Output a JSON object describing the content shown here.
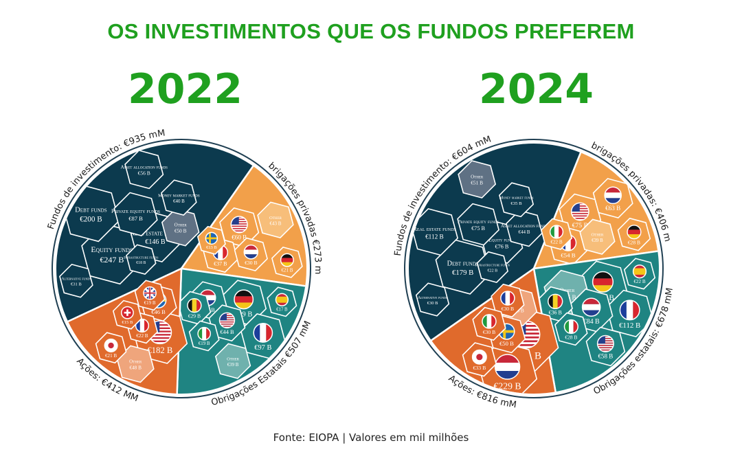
{
  "title": "OS INVESTIMENTOS QUE OS FUNDOS PREFEREM",
  "source": "Fonte: EIOPA | Valores em mil milhões",
  "colors": {
    "investment_funds": "#0c3a4e",
    "corporate_bonds": "#f2a04a",
    "government_bonds": "#1f8482",
    "equities": "#e06a2c",
    "other_fund": "#5f7184",
    "other_corp": "#f7be7a",
    "other_gov": "#6fb1ad",
    "other_eq": "#efa57c",
    "title_green": "#1fa01f"
  },
  "chart_data": [
    {
      "type": "voronoi-treemap",
      "year": "2022",
      "groups": [
        {
          "id": "fund",
          "label": "Fundos de investimento: €935 mM",
          "value": 935,
          "color": "#0c3a4e"
        },
        {
          "id": "corp",
          "label": "Obrigações privadas €273 mM",
          "value": 273,
          "color": "#f2a04a"
        },
        {
          "id": "gov",
          "label": "Obrigações Estatais €507 mM",
          "value": 507,
          "color": "#1f8482"
        },
        {
          "id": "eq",
          "label": "Ações: €412 MM",
          "value": 412,
          "color": "#e06a2c"
        }
      ],
      "cells": [
        {
          "group": "fund",
          "name": "Equity funds",
          "value_label": "€247 B",
          "value": 247
        },
        {
          "group": "fund",
          "name": "Debt funds",
          "value_label": "€200 B",
          "value": 200
        },
        {
          "group": "fund",
          "name": "Real estate funds",
          "value_label": "€146 B",
          "value": 146
        },
        {
          "group": "fund",
          "name": "Private equity funds",
          "value_label": "€87 B",
          "value": 87
        },
        {
          "group": "fund",
          "name": "Other",
          "value_label": "€50 B",
          "value": 50
        },
        {
          "group": "fund",
          "name": "Asset allocation funds",
          "value_label": "€56 B",
          "value": 56
        },
        {
          "group": "fund",
          "name": "Infrastructure funds",
          "value_label": "€18 B",
          "value": 18
        },
        {
          "group": "fund",
          "name": "Alternative funds",
          "value_label": "€31 B",
          "value": 31
        },
        {
          "group": "fund",
          "name": "Money market funds",
          "value_label": "€40 B",
          "value": 40
        },
        {
          "group": "corp",
          "name": "USA",
          "value_label": "€60 B",
          "value": 60,
          "flag": "us"
        },
        {
          "group": "corp",
          "name": "Other",
          "value_label": "€43 B",
          "value": 43
        },
        {
          "group": "corp",
          "name": "France",
          "value_label": "€37 B",
          "value": 37,
          "flag": "fr"
        },
        {
          "group": "corp",
          "name": "Germany",
          "value_label": "€21 B",
          "value": 21,
          "flag": "de"
        },
        {
          "group": "corp",
          "name": "Netherlands",
          "value_label": "€30 B",
          "value": 30,
          "flag": "nl"
        },
        {
          "group": "corp",
          "name": "Sweden",
          "value_label": "€13 B",
          "value": 13,
          "flag": "se"
        },
        {
          "group": "gov",
          "name": "Germany",
          "value_label": "€99 B",
          "value": 99,
          "flag": "de"
        },
        {
          "group": "gov",
          "name": "France",
          "value_label": "€97 B",
          "value": 97,
          "flag": "fr"
        },
        {
          "group": "gov",
          "name": "Netherlands",
          "value_label": "€52 B",
          "value": 52,
          "flag": "nl"
        },
        {
          "group": "gov",
          "name": "Other",
          "value_label": "€39 B",
          "value": 39
        },
        {
          "group": "gov",
          "name": "Belgium",
          "value_label": "€29 B",
          "value": 29,
          "flag": "be"
        },
        {
          "group": "gov",
          "name": "USA",
          "value_label": "€44 B",
          "value": 44,
          "flag": "us"
        },
        {
          "group": "gov",
          "name": "Spain",
          "value_label": "€17 B",
          "value": 17,
          "flag": "es"
        },
        {
          "group": "gov",
          "name": "Italy",
          "value_label": "€19 B",
          "value": 19,
          "flag": "it"
        },
        {
          "group": "eq",
          "name": "USA",
          "value_label": "€182 B",
          "value": 182,
          "flag": "us"
        },
        {
          "group": "eq",
          "name": "Sweden",
          "value_label": "€46 B",
          "value": 46,
          "flag": "se"
        },
        {
          "group": "eq",
          "name": "Other",
          "value_label": "€48 B",
          "value": 48
        },
        {
          "group": "eq",
          "name": "UK",
          "value_label": "€19 B",
          "value": 19,
          "flag": "gb"
        },
        {
          "group": "eq",
          "name": "France",
          "value_label": "€22 B",
          "value": 22,
          "flag": "fr"
        },
        {
          "group": "eq",
          "name": "Japan",
          "value_label": "€21 B",
          "value": 21,
          "flag": "jp"
        },
        {
          "group": "eq",
          "name": "Switzerland",
          "value_label": "€15 B",
          "value": 15,
          "flag": "ch"
        }
      ]
    },
    {
      "type": "voronoi-treemap",
      "year": "2024",
      "groups": [
        {
          "id": "fund",
          "label": "Fundos de investimento: €604 mM",
          "value": 604,
          "color": "#0c3a4e"
        },
        {
          "id": "corp",
          "label": "Obrigações privadas: €406 mM",
          "value": 406,
          "color": "#f2a04a"
        },
        {
          "id": "gov",
          "label": "Obrigações estatais: €678 mM",
          "value": 678,
          "color": "#1f8482"
        },
        {
          "id": "eq",
          "label": "Ações: €816 mM",
          "value": 816,
          "color": "#e06a2c"
        }
      ],
      "cells": [
        {
          "group": "fund",
          "name": "Debt funds",
          "value_label": "€179 B",
          "value": 179
        },
        {
          "group": "fund",
          "name": "Real estate funds",
          "value_label": "€112 B",
          "value": 112
        },
        {
          "group": "fund",
          "name": "Equity funds",
          "value_label": "€76 B",
          "value": 76
        },
        {
          "group": "fund",
          "name": "Private equity funds",
          "value_label": "€75 B",
          "value": 75
        },
        {
          "group": "fund",
          "name": "Other",
          "value_label": "€51 B",
          "value": 51
        },
        {
          "group": "fund",
          "name": "Asset allocation funds",
          "value_label": "€44 B",
          "value": 44
        },
        {
          "group": "fund",
          "name": "Alternative funds",
          "value_label": "€30 B",
          "value": 30
        },
        {
          "group": "fund",
          "name": "Money market funds",
          "value_label": "€35 B",
          "value": 35
        },
        {
          "group": "fund",
          "name": "Infrastructure funds",
          "value_label": "€22 B",
          "value": 22
        },
        {
          "group": "corp",
          "name": "USA",
          "value_label": "€75 B",
          "value": 75,
          "flag": "us"
        },
        {
          "group": "corp",
          "name": "Netherlands",
          "value_label": "€63 B",
          "value": 63,
          "flag": "nl"
        },
        {
          "group": "corp",
          "name": "France",
          "value_label": "€54 B",
          "value": 54,
          "flag": "fr"
        },
        {
          "group": "corp",
          "name": "Other",
          "value_label": "€39 B",
          "value": 39
        },
        {
          "group": "corp",
          "name": "Germany",
          "value_label": "€28 B",
          "value": 28,
          "flag": "de"
        },
        {
          "group": "corp",
          "name": "Italy",
          "value_label": "€22 B",
          "value": 22,
          "flag": "it"
        },
        {
          "group": "gov",
          "name": "Germany",
          "value_label": "€128 B",
          "value": 128,
          "flag": "de"
        },
        {
          "group": "gov",
          "name": "France",
          "value_label": "€112 B",
          "value": 112,
          "flag": "fr"
        },
        {
          "group": "gov",
          "name": "Other",
          "value_label": "€105 B",
          "value": 105
        },
        {
          "group": "gov",
          "name": "Netherlands",
          "value_label": "€84 B",
          "value": 84,
          "flag": "nl"
        },
        {
          "group": "gov",
          "name": "USA",
          "value_label": "€58 B",
          "value": 58,
          "flag": "us"
        },
        {
          "group": "gov",
          "name": "Belgium",
          "value_label": "€36 B",
          "value": 36,
          "flag": "be"
        },
        {
          "group": "gov",
          "name": "Italy",
          "value_label": "€28 B",
          "value": 28,
          "flag": "it"
        },
        {
          "group": "gov",
          "name": "Spain",
          "value_label": "€22 B",
          "value": 22,
          "flag": "es"
        },
        {
          "group": "eq",
          "name": "USA",
          "value_label": "€291 B",
          "value": 291,
          "flag": "us"
        },
        {
          "group": "eq",
          "name": "Netherlands",
          "value_label": "€229 B",
          "value": 229,
          "flag": "nl"
        },
        {
          "group": "eq",
          "name": "Other",
          "value_label": "€56 B",
          "value": 56
        },
        {
          "group": "eq",
          "name": "Sweden",
          "value_label": "€50 B",
          "value": 50,
          "flag": "se"
        },
        {
          "group": "eq",
          "name": "France",
          "value_label": "€30 B",
          "value": 30,
          "flag": "fr"
        },
        {
          "group": "eq",
          "name": "Italy",
          "value_label": "€30 B",
          "value": 30,
          "flag": "it"
        },
        {
          "group": "eq",
          "name": "Japan",
          "value_label": "€33 B",
          "value": 33,
          "flag": "jp"
        }
      ]
    }
  ]
}
